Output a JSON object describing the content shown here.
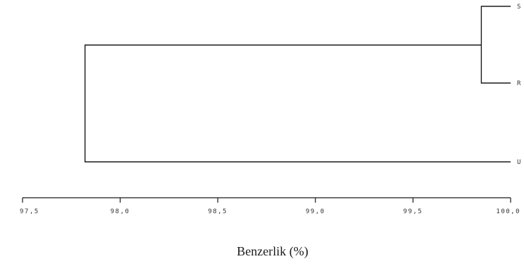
{
  "chart_data": {
    "type": "dendrogram",
    "xlabel": "Benzerlik (%)",
    "xlim": [
      97.5,
      100.0
    ],
    "x_ticks": [
      "97,5",
      "98,0",
      "98,5",
      "99,0",
      "99,5",
      "100,0"
    ],
    "leaves": [
      {
        "id": "S",
        "label": "S"
      },
      {
        "id": "R",
        "label": "R"
      },
      {
        "id": "U",
        "label": "U"
      }
    ],
    "merges": [
      {
        "left": "S",
        "right": "R",
        "similarity": 99.85
      },
      {
        "left": "S+R",
        "right": "U",
        "similarity": 97.82
      }
    ]
  }
}
